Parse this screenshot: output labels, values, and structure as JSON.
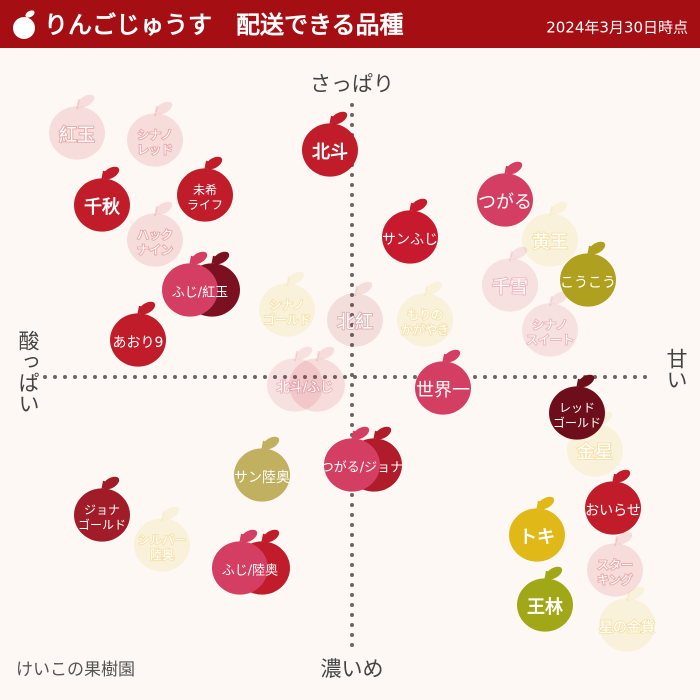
{
  "header": {
    "title": "りんごじゅうす　配送できる品種",
    "date": "2024年3月30日時点"
  },
  "axes": {
    "top": "さっぱり",
    "bottom": "濃いめ",
    "left": "酸っぱい",
    "right": "甘い"
  },
  "footer": "けいこの果樹園",
  "nodes": [
    {
      "lines": [
        "紅玉"
      ],
      "colors": [
        "#c8202e"
      ],
      "available": false
    },
    {
      "lines": [
        "シナノ",
        "レッド"
      ],
      "colors": [
        "#c8202e"
      ],
      "available": false
    },
    {
      "lines": [
        "ハック",
        "ナイン"
      ],
      "colors": [
        "#c8202e"
      ],
      "available": false
    },
    {
      "lines": [
        "シナノ",
        "ゴールド"
      ],
      "colors": [
        "#e8c030"
      ],
      "available": false
    },
    {
      "lines": [
        "北紅"
      ],
      "colors": [
        "#b03040"
      ],
      "available": false
    },
    {
      "lines": [
        "もりの",
        "かがやき"
      ],
      "colors": [
        "#e8c030"
      ],
      "available": false
    },
    {
      "lines": [
        "北斗/ふじ"
      ],
      "colors": [
        "#d04060",
        "#c8202e"
      ],
      "available": false
    },
    {
      "lines": [
        "黄王"
      ],
      "colors": [
        "#e8c030"
      ],
      "available": false
    },
    {
      "lines": [
        "千雪"
      ],
      "colors": [
        "#d04060"
      ],
      "available": false
    },
    {
      "lines": [
        "シナノ",
        "スイート"
      ],
      "colors": [
        "#d04060"
      ],
      "available": false
    },
    {
      "lines": [
        "金星"
      ],
      "colors": [
        "#e8c030"
      ],
      "available": false
    },
    {
      "lines": [
        "シルバー",
        "陸奥"
      ],
      "colors": [
        "#e8c030"
      ],
      "available": false
    },
    {
      "lines": [
        "スター",
        "キング"
      ],
      "colors": [
        "#c8202e"
      ],
      "available": false
    },
    {
      "lines": [
        "星の金貨"
      ],
      "colors": [
        "#e8c030"
      ],
      "available": false
    },
    {
      "lines": [
        "北斗"
      ],
      "colors": [
        "#c01c2a"
      ],
      "available": true
    },
    {
      "lines": [
        "千秋"
      ],
      "colors": [
        "#c01c2a"
      ],
      "available": true
    },
    {
      "lines": [
        "未希",
        "ライフ"
      ],
      "colors": [
        "#c01c2a"
      ],
      "available": true
    },
    {
      "lines": [
        "つがる"
      ],
      "colors": [
        "#d43e62"
      ],
      "available": true
    },
    {
      "lines": [
        "サンふじ"
      ],
      "colors": [
        "#c81a2e"
      ],
      "available": true
    },
    {
      "lines": [
        "こうこう"
      ],
      "colors": [
        "#b0a020"
      ],
      "available": true
    },
    {
      "lines": [
        "ふじ/紅玉"
      ],
      "colors": [
        "#d43e62",
        "#7a1020"
      ],
      "available": true
    },
    {
      "lines": [
        "あおり9"
      ],
      "colors": [
        "#c01c2a"
      ],
      "available": true
    },
    {
      "lines": [
        "世界一"
      ],
      "colors": [
        "#d43e62"
      ],
      "available": true
    },
    {
      "lines": [
        "レッド",
        "ゴールド"
      ],
      "colors": [
        "#6e0e1a"
      ],
      "available": true
    },
    {
      "lines": [
        "サン陸奥"
      ],
      "colors": [
        "#c0b060"
      ],
      "available": true
    },
    {
      "lines": [
        "つがる/ジョナ"
      ],
      "colors": [
        "#d43e62",
        "#b01c2a"
      ],
      "available": true
    },
    {
      "lines": [
        "ジョナ",
        "ゴールド"
      ],
      "colors": [
        "#a01c28"
      ],
      "available": true
    },
    {
      "lines": [
        "おいらせ"
      ],
      "colors": [
        "#c01c2a"
      ],
      "available": true
    },
    {
      "lines": [
        "トキ"
      ],
      "colors": [
        "#e0b818"
      ],
      "available": true
    },
    {
      "lines": [
        "ふじ/陸奥"
      ],
      "colors": [
        "#d43e62",
        "#c01c2a"
      ],
      "available": true
    },
    {
      "lines": [
        "王林"
      ],
      "colors": [
        "#a0a818"
      ],
      "available": true
    }
  ]
}
